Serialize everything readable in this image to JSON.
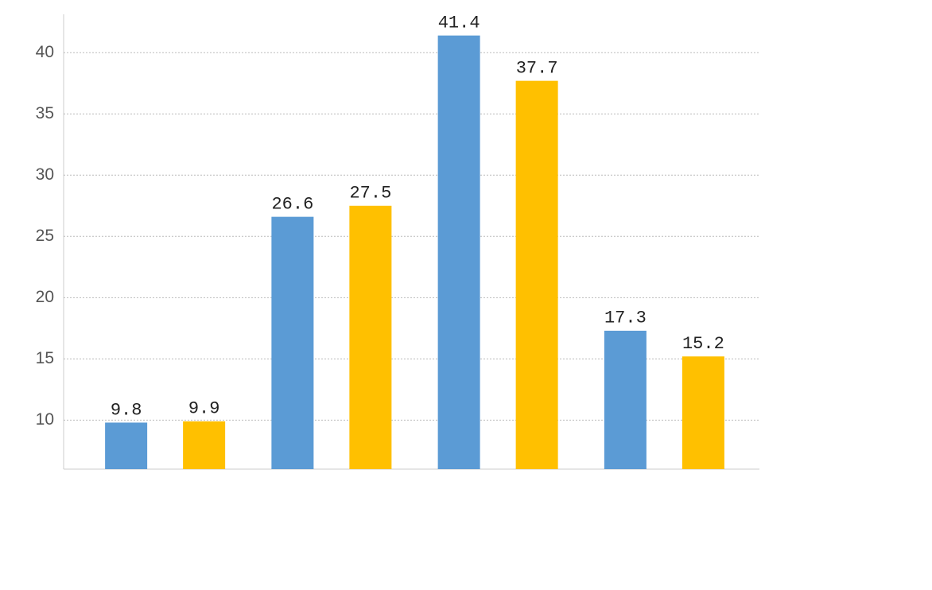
{
  "chart_data": {
    "type": "bar",
    "categories": [
      null,
      null,
      null,
      null
    ],
    "series": [
      {
        "color": "#5b9bd5",
        "values": [
          9.8,
          26.6,
          41.4,
          17.3
        ]
      },
      {
        "color": "#ffc000",
        "values": [
          9.9,
          27.5,
          37.7,
          15.2
        ]
      }
    ],
    "ylim": [
      6,
      43
    ],
    "yticks": [
      10,
      15,
      20,
      25,
      30,
      35,
      40
    ],
    "grid": true
  }
}
